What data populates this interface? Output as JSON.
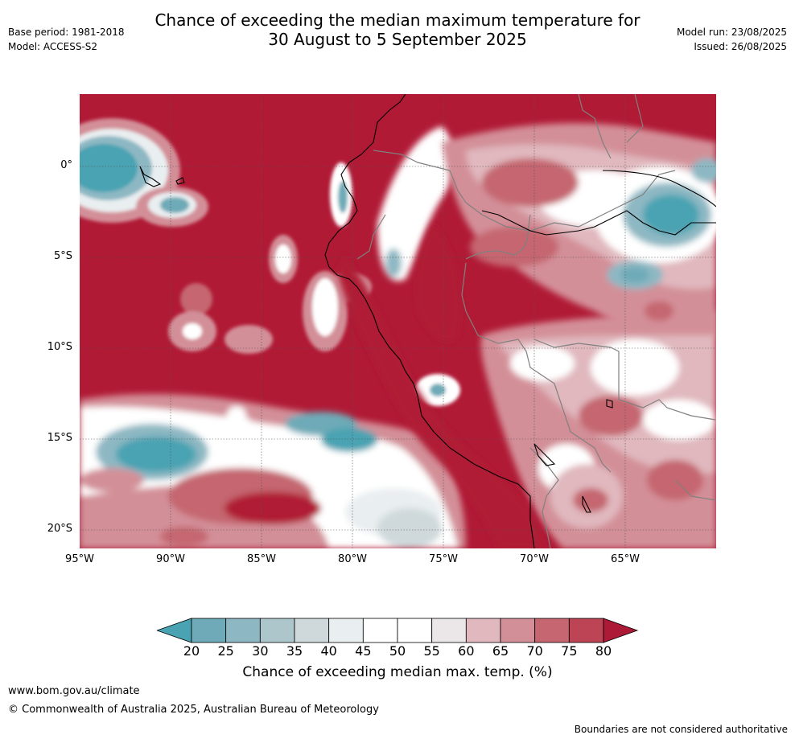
{
  "title": {
    "line1": "Chance of exceeding the median maximum temperature for",
    "line2": "30 August to 5 September 2025"
  },
  "meta": {
    "base_period": "Base period: 1981-2018",
    "model": "Model: ACCESS-S2",
    "model_run": "Model run: 23/08/2025",
    "issued": "Issued: 26/08/2025"
  },
  "map": {
    "lat_labels": [
      "0°",
      "5°S",
      "10°S",
      "15°S",
      "20°S"
    ],
    "lon_labels": [
      "95°W",
      "90°W",
      "85°W",
      "80°W",
      "75°W",
      "70°W",
      "65°W"
    ],
    "background_color": "#b01a35"
  },
  "colorbar": {
    "ticks": [
      "20",
      "25",
      "30",
      "35",
      "40",
      "45",
      "50",
      "55",
      "60",
      "65",
      "70",
      "75",
      "80"
    ],
    "colors": [
      "#4aa3b2",
      "#6eaab7",
      "#8db8c3",
      "#adc6cb",
      "#cfd9db",
      "#e9eef0",
      "#ffffff",
      "#ffffff",
      "#ebe6e8",
      "#e0b8be",
      "#d38f98",
      "#c56670",
      "#bd4454",
      "#ad1a38"
    ],
    "label": "Chance of exceeding median max. temp. (%)"
  },
  "footer": {
    "website": "www.bom.gov.au/climate",
    "copyright": "© Commonwealth of Australia 2025, Australian Bureau of Meteorology",
    "disclaimer": "Boundaries are not considered authoritative"
  }
}
